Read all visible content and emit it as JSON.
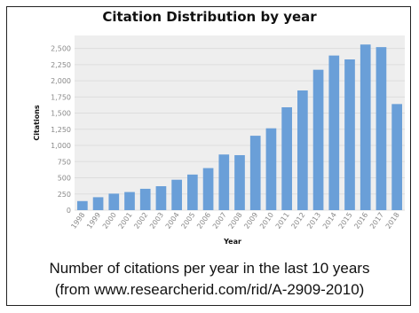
{
  "colors": {
    "bar": "#6a9fd8",
    "grid": "#dddddd",
    "plot_bg": "#eeeeee"
  },
  "caption": {
    "line1": "Number of citations per year in the last 10 years",
    "line2": "(from www.researcherid.com/rid/A-2909-2010)"
  },
  "chart_data": {
    "type": "bar",
    "title": "Citation Distribution by year",
    "xlabel": "Year",
    "ylabel": "Citations",
    "ylim": [
      0,
      2700
    ],
    "yticks": [
      0,
      250,
      500,
      750,
      1000,
      1250,
      1500,
      1750,
      2000,
      2250,
      2500
    ],
    "ytick_labels": [
      "0",
      "250",
      "500",
      "750",
      "1,000",
      "1,250",
      "1,500",
      "1,750",
      "2,000",
      "2,250",
      "2,500"
    ],
    "grid": true,
    "categories": [
      "1998",
      "1999",
      "2000",
      "2001",
      "2002",
      "2003",
      "2004",
      "2005",
      "2006",
      "2007",
      "2008",
      "2009",
      "2010",
      "2011",
      "2012",
      "2013",
      "2014",
      "2015",
      "2016",
      "2017",
      "2018"
    ],
    "values": [
      140,
      200,
      255,
      280,
      330,
      370,
      470,
      550,
      650,
      860,
      850,
      1150,
      1265,
      1590,
      1850,
      2170,
      2390,
      2330,
      2560,
      2520,
      1640
    ]
  }
}
